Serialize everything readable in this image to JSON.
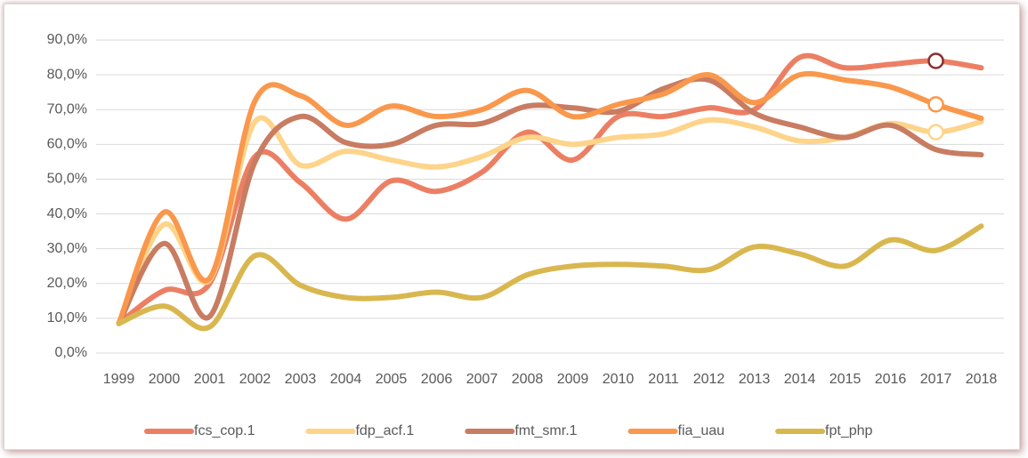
{
  "chart_data": {
    "type": "line",
    "categories": [
      "1999",
      "2000",
      "2001",
      "2002",
      "2003",
      "2004",
      "2005",
      "2006",
      "2007",
      "2008",
      "2009",
      "2010",
      "2011",
      "2012",
      "2013",
      "2014",
      "2015",
      "2016",
      "2017",
      "2018"
    ],
    "series": [
      {
        "name": "fcs_cop.1",
        "color": "#ec7f63",
        "values": [
          8.5,
          18,
          20,
          56.5,
          49,
          38.5,
          49.5,
          46.5,
          52,
          63.5,
          55.5,
          68,
          68,
          70.5,
          70,
          85,
          82,
          83,
          84,
          82
        ],
        "marker_color": "#8b2f2f"
      },
      {
        "name": "fdp_acf.1",
        "color": "#fdd48a",
        "values": [
          8.5,
          37,
          21,
          66.5,
          54,
          58,
          55.5,
          53.5,
          56.5,
          62,
          60,
          62,
          63,
          67,
          65,
          61,
          62,
          66,
          63.5,
          66.5
        ],
        "marker_color": "#fdd48a"
      },
      {
        "name": "fmt_smr.1",
        "color": "#c87c62",
        "values": [
          8.5,
          31.5,
          10.5,
          55,
          68,
          60.5,
          60,
          65.5,
          66,
          71,
          70.5,
          69.5,
          76,
          78.5,
          69,
          65,
          62,
          65.5,
          58.5,
          57
        ]
      },
      {
        "name": "fia_uau",
        "color": "#f9984c",
        "values": [
          8.5,
          40.5,
          21.5,
          72.5,
          74,
          65.5,
          71,
          68,
          70,
          75.5,
          68,
          71.5,
          74.5,
          80,
          72,
          80,
          78.5,
          76.5,
          71.5,
          67.5
        ],
        "marker_color": "#f9984c"
      },
      {
        "name": "fpt_php",
        "color": "#d9b74f",
        "values": [
          8.5,
          13.5,
          7.5,
          28,
          19.5,
          16,
          16,
          17.5,
          16,
          22.5,
          25,
          25.5,
          25,
          24,
          30.5,
          28.5,
          25,
          32.5,
          29.5,
          36.5
        ]
      }
    ],
    "highlight": "2017",
    "ylim": [
      0,
      90
    ],
    "yticks": [
      {
        "value": 0,
        "label": "0,0%"
      },
      {
        "value": 10,
        "label": "10,0%"
      },
      {
        "value": 20,
        "label": "20,0%"
      },
      {
        "value": 30,
        "label": "30,0%"
      },
      {
        "value": 40,
        "label": "40,0%"
      },
      {
        "value": 50,
        "label": "50,0%"
      },
      {
        "value": 60,
        "label": "60,0%"
      },
      {
        "value": 70,
        "label": "70,0%"
      },
      {
        "value": 80,
        "label": "80,0%"
      },
      {
        "value": 90,
        "label": "90,0%"
      }
    ],
    "grid": true,
    "legend": "bottom"
  }
}
